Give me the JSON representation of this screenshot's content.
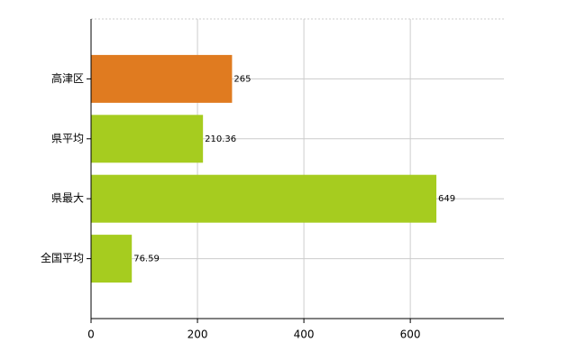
{
  "chart_data": {
    "type": "bar",
    "orientation": "horizontal",
    "categories": [
      "高津区",
      "県平均",
      "県最大",
      "全国平均"
    ],
    "values": [
      265,
      210.36,
      649,
      76.59
    ],
    "colors": [
      "#e07b20",
      "#a6cc1f",
      "#a6cc1f",
      "#a6cc1f"
    ],
    "xlim": [
      0,
      776
    ],
    "xticks": [
      0,
      200,
      400,
      600
    ],
    "grid": true
  }
}
